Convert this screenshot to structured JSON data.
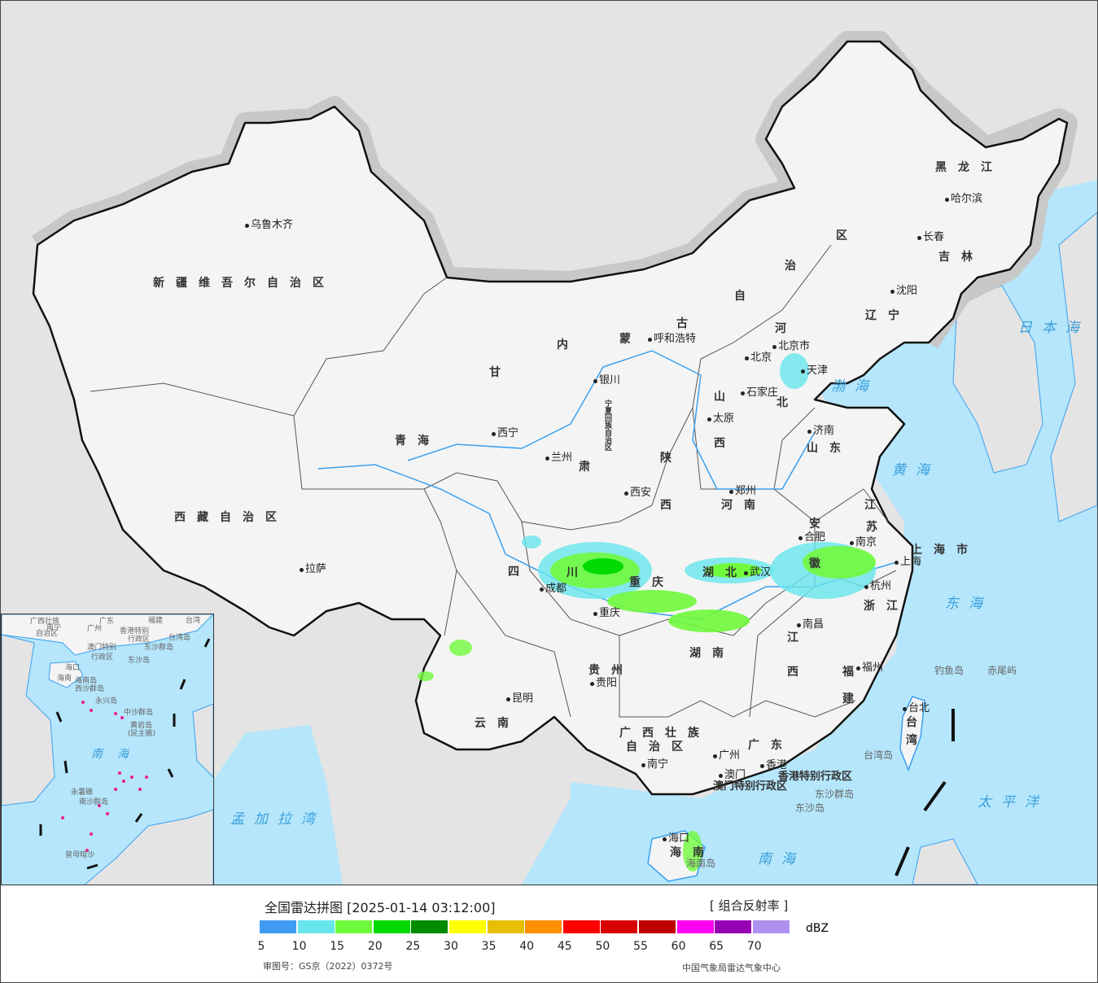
{
  "map": {
    "colors": {
      "sea": "#b5e6fb",
      "land": "#f4f4f4",
      "foreign_land": "#e4e4e4",
      "border": "#111111",
      "river": "#3aa0ef"
    },
    "labels": [
      {
        "text": "新疆维吾尔自治区",
        "kind": "province"
      },
      {
        "text": "西藏自治区",
        "kind": "province"
      },
      {
        "text": "青海",
        "kind": "province"
      },
      {
        "text": "甘",
        "kind": "province"
      },
      {
        "text": "肃",
        "kind": "province"
      },
      {
        "text": "内",
        "kind": "province"
      },
      {
        "text": "蒙",
        "kind": "province"
      },
      {
        "text": "古",
        "kind": "province"
      },
      {
        "text": "自",
        "kind": "province"
      },
      {
        "text": "治",
        "kind": "province"
      },
      {
        "text": "区",
        "kind": "province"
      },
      {
        "text": "黑龙江",
        "kind": "province"
      },
      {
        "text": "吉林",
        "kind": "province"
      },
      {
        "text": "辽宁",
        "kind": "province"
      },
      {
        "text": "河",
        "kind": "province"
      },
      {
        "text": "北",
        "kind": "province"
      },
      {
        "text": "山",
        "kind": "province"
      },
      {
        "text": "西",
        "kind": "province"
      },
      {
        "text": "陕",
        "kind": "province"
      },
      {
        "text": "西",
        "kind": "province"
      },
      {
        "text": "山东",
        "kind": "province"
      },
      {
        "text": "河南",
        "kind": "province"
      },
      {
        "text": "江",
        "kind": "province"
      },
      {
        "text": "苏",
        "kind": "province"
      },
      {
        "text": "安",
        "kind": "province"
      },
      {
        "text": "徽",
        "kind": "province"
      },
      {
        "text": "上海市",
        "kind": "province"
      },
      {
        "text": "浙江",
        "kind": "province"
      },
      {
        "text": "湖北",
        "kind": "province"
      },
      {
        "text": "四",
        "kind": "province"
      },
      {
        "text": "川",
        "kind": "province"
      },
      {
        "text": "重庆",
        "kind": "province"
      },
      {
        "text": "湖南",
        "kind": "province"
      },
      {
        "text": "江",
        "kind": "province"
      },
      {
        "text": "西",
        "kind": "province"
      },
      {
        "text": "福",
        "kind": "province"
      },
      {
        "text": "建",
        "kind": "province"
      },
      {
        "text": "贵州",
        "kind": "province"
      },
      {
        "text": "云南",
        "kind": "province"
      },
      {
        "text": "广西壮族",
        "kind": "province"
      },
      {
        "text": "自治区",
        "kind": "province"
      },
      {
        "text": "广东",
        "kind": "province"
      },
      {
        "text": "台",
        "kind": "province"
      },
      {
        "text": "湾",
        "kind": "province"
      },
      {
        "text": "海南",
        "kind": "province"
      },
      {
        "text": "香港特别行政区",
        "kind": "province"
      },
      {
        "text": "澳门特别行政区",
        "kind": "province"
      },
      {
        "text": "宁夏回族自治区",
        "kind": "province-vertical"
      },
      {
        "text": "乌鲁木齐",
        "kind": "city"
      },
      {
        "text": "拉萨",
        "kind": "city"
      },
      {
        "text": "西宁",
        "kind": "city"
      },
      {
        "text": "兰州",
        "kind": "city"
      },
      {
        "text": "银川",
        "kind": "city"
      },
      {
        "text": "呼和浩特",
        "kind": "city"
      },
      {
        "text": "北京",
        "kind": "city"
      },
      {
        "text": "北京市",
        "kind": "city"
      },
      {
        "text": "天津",
        "kind": "city"
      },
      {
        "text": "石家庄",
        "kind": "city"
      },
      {
        "text": "太原",
        "kind": "city"
      },
      {
        "text": "济南",
        "kind": "city"
      },
      {
        "text": "郑州",
        "kind": "city"
      },
      {
        "text": "西安",
        "kind": "city"
      },
      {
        "text": "成都",
        "kind": "city"
      },
      {
        "text": "重庆",
        "kind": "city"
      },
      {
        "text": "贵阳",
        "kind": "city"
      },
      {
        "text": "昆明",
        "kind": "city"
      },
      {
        "text": "南宁",
        "kind": "city"
      },
      {
        "text": "广州",
        "kind": "city"
      },
      {
        "text": "澳门",
        "kind": "city"
      },
      {
        "text": "香港",
        "kind": "city"
      },
      {
        "text": "海口",
        "kind": "city"
      },
      {
        "text": "武汉",
        "kind": "city"
      },
      {
        "text": "南昌",
        "kind": "city"
      },
      {
        "text": "合肥",
        "kind": "city"
      },
      {
        "text": "南京",
        "kind": "city"
      },
      {
        "text": "杭州",
        "kind": "city"
      },
      {
        "text": "上海",
        "kind": "city"
      },
      {
        "text": "福州",
        "kind": "city"
      },
      {
        "text": "台北",
        "kind": "city"
      },
      {
        "text": "沈阳",
        "kind": "city"
      },
      {
        "text": "长春",
        "kind": "city"
      },
      {
        "text": "哈尔滨",
        "kind": "city"
      },
      {
        "text": "日本海",
        "kind": "sea"
      },
      {
        "text": "渤海",
        "kind": "sea"
      },
      {
        "text": "黄海",
        "kind": "sea"
      },
      {
        "text": "东海",
        "kind": "sea"
      },
      {
        "text": "太平洋",
        "kind": "sea"
      },
      {
        "text": "南海",
        "kind": "sea"
      },
      {
        "text": "孟加拉湾",
        "kind": "sea"
      },
      {
        "text": "钓鱼岛",
        "kind": "island"
      },
      {
        "text": "赤尾屿",
        "kind": "island"
      },
      {
        "text": "台湾岛",
        "kind": "island"
      },
      {
        "text": "东沙群岛",
        "kind": "island"
      },
      {
        "text": "东沙岛",
        "kind": "island"
      },
      {
        "text": "海南岛",
        "kind": "island"
      }
    ]
  },
  "inset": {
    "labels": [
      {
        "text": "广西壮族"
      },
      {
        "text": "自治区"
      },
      {
        "text": "南宁"
      },
      {
        "text": "广东"
      },
      {
        "text": "广州"
      },
      {
        "text": "福建"
      },
      {
        "text": "台湾"
      },
      {
        "text": "香港特别"
      },
      {
        "text": "行政区"
      },
      {
        "text": "澳门特别"
      },
      {
        "text": "行政区"
      },
      {
        "text": "台湾岛"
      },
      {
        "text": "东沙群岛"
      },
      {
        "text": "东沙岛"
      },
      {
        "text": "海口"
      },
      {
        "text": "海南"
      },
      {
        "text": "海南岛"
      },
      {
        "text": "西沙群岛"
      },
      {
        "text": "永兴岛"
      },
      {
        "text": "中沙群岛"
      },
      {
        "text": "黄岩岛"
      },
      {
        "text": "(民主礁)"
      },
      {
        "text": "南海"
      },
      {
        "text": "永暑礁"
      },
      {
        "text": "南沙群岛"
      },
      {
        "text": "曾母暗沙"
      }
    ]
  },
  "legend": {
    "title": "全国雷达拼图 [2025-01-14 03:12:00]",
    "product": "[ 组合反射率 ]",
    "unit": "dBZ",
    "colors": [
      "#409cf2",
      "#66e6ec",
      "#70fa3c",
      "#00da00",
      "#008c00",
      "#ffff00",
      "#e6c000",
      "#ff8e00",
      "#ff0000",
      "#d80000",
      "#c00000",
      "#ff00f0",
      "#9600b4",
      "#ae90ee"
    ],
    "ticks": [
      "5",
      "10",
      "15",
      "20",
      "25",
      "30",
      "35",
      "40",
      "45",
      "50",
      "55",
      "60",
      "65",
      "70"
    ],
    "approval_number": "审图号：GS京（2022）0372号",
    "source": "中国气象局雷达气象中心"
  }
}
